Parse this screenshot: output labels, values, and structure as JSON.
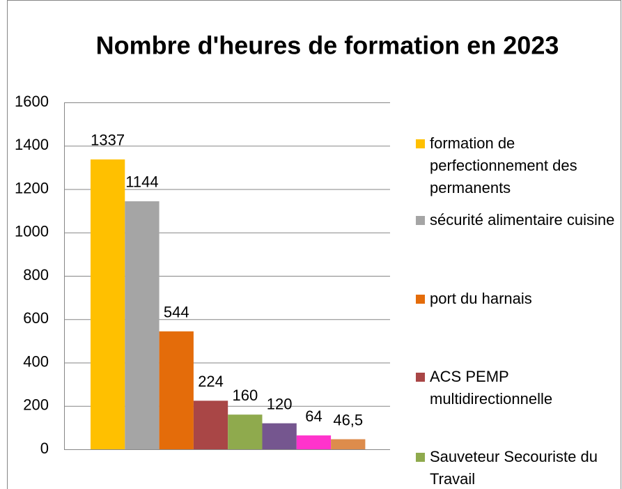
{
  "chart_data": {
    "type": "bar",
    "title": "Nombre d'heures de formation en 2023",
    "series": [
      {
        "name": "formation de perfectionnement des permanents",
        "color": "#ffc000",
        "values": [
          1337
        ]
      },
      {
        "name": "sécurité alimentaire cuisine",
        "color": "#a5a5a5",
        "values": [
          1144
        ]
      },
      {
        "name": "port du harnais",
        "color": "#e46c0a",
        "values": [
          544
        ]
      },
      {
        "name": "ACS PEMP multidirectionnelle",
        "color": "#a94646",
        "values": [
          224
        ]
      },
      {
        "name": "Sauveteur Secouriste du Travail",
        "color": "#8faa4d",
        "values": [
          160
        ]
      },
      {
        "color": "#75568f",
        "values": [
          120
        ]
      },
      {
        "color": "#ff33cc",
        "values": [
          64
        ]
      },
      {
        "color": "#dd8c4c",
        "values": [
          46.5
        ],
        "value_labels": [
          "46,5"
        ]
      }
    ],
    "ylim": [
      0,
      1600
    ],
    "yticks": [
      0,
      200,
      400,
      600,
      800,
      1000,
      1200,
      1400,
      1600
    ],
    "grid": true
  }
}
